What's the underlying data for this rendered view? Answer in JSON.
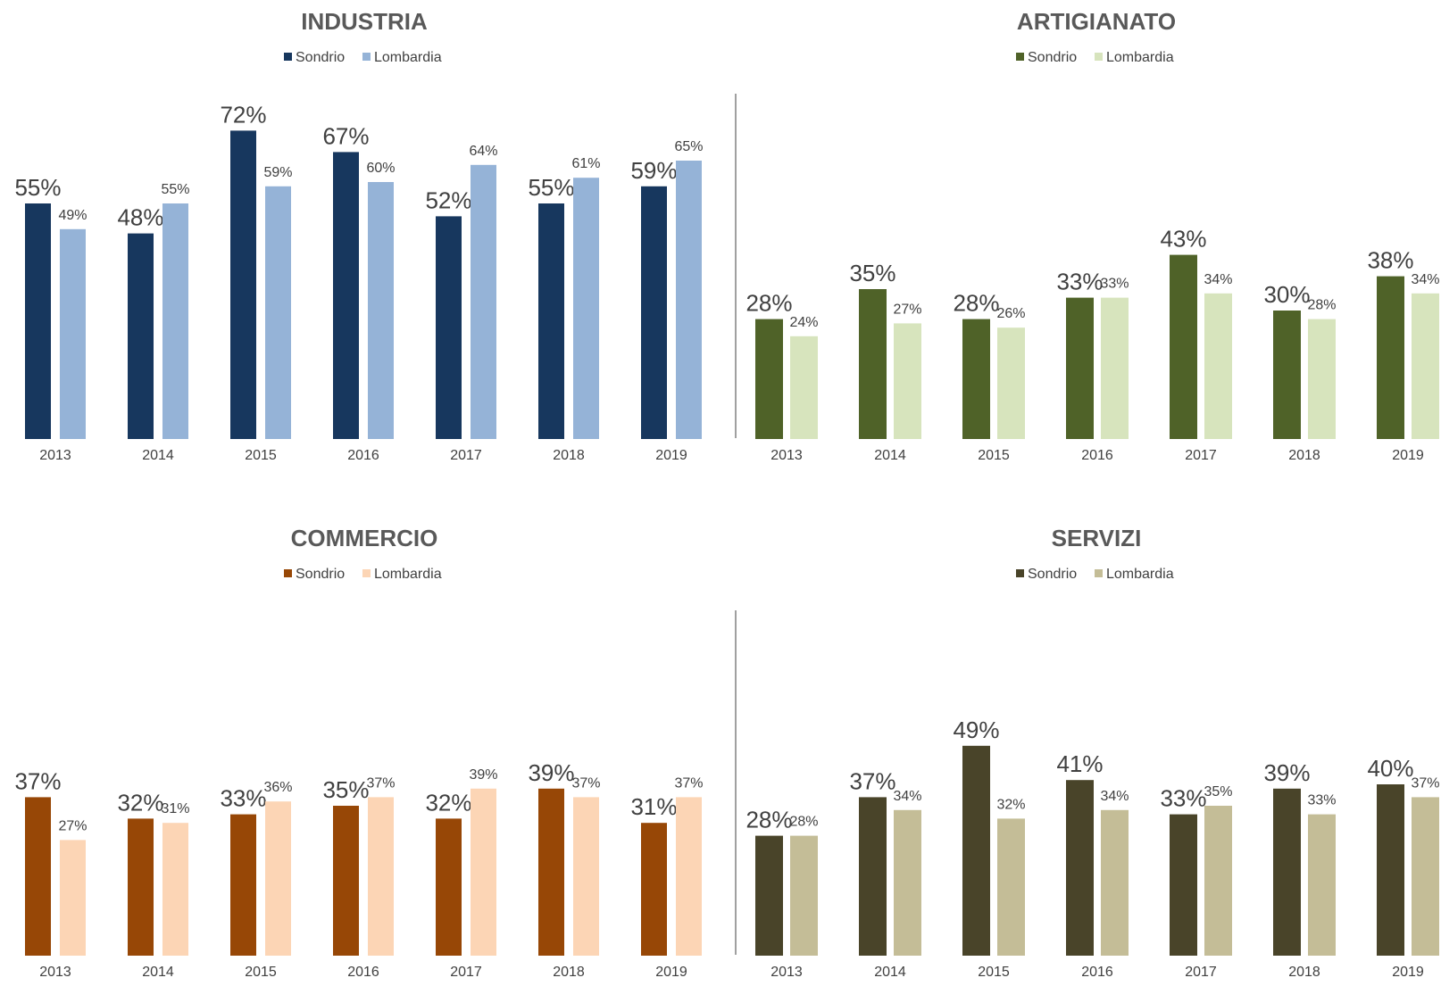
{
  "chart_data": [
    {
      "type": "bar",
      "title": "INDUSTRIA",
      "categories": [
        "2013",
        "2014",
        "2015",
        "2016",
        "2017",
        "2018",
        "2019"
      ],
      "series": [
        {
          "name": "Sondrio",
          "color": "#17375e",
          "values": [
            55,
            48,
            72,
            67,
            52,
            55,
            59
          ],
          "labels": [
            "55%",
            "48%",
            "72%",
            "67%",
            "52%",
            "55%",
            "59%"
          ]
        },
        {
          "name": "Lombardia",
          "color": "#95b3d7",
          "values": [
            49,
            55,
            59,
            60,
            64,
            61,
            65
          ],
          "labels": [
            "49%",
            "55%",
            "59%",
            "60%",
            "64%",
            "61%",
            "65%"
          ]
        }
      ],
      "ylim": [
        0,
        80
      ],
      "grid": false,
      "legend": "top"
    },
    {
      "type": "bar",
      "title": "ARTIGIANATO",
      "categories": [
        "2013",
        "2014",
        "2015",
        "2016",
        "2017",
        "2018",
        "2019"
      ],
      "series": [
        {
          "name": "Sondrio",
          "color": "#4f6228",
          "values": [
            28,
            35,
            28,
            33,
            43,
            30,
            38
          ],
          "labels": [
            "28%",
            "35%",
            "28%",
            "33%",
            "43%",
            "30%",
            "38%"
          ]
        },
        {
          "name": "Lombardia",
          "color": "#d7e4bd",
          "values": [
            24,
            27,
            26,
            33,
            34,
            28,
            34
          ],
          "labels": [
            "24%",
            "27%",
            "26%",
            "33%",
            "34%",
            "28%",
            "34%"
          ]
        }
      ],
      "ylim": [
        0,
        80
      ],
      "grid": false,
      "legend": "top"
    },
    {
      "type": "bar",
      "title": "COMMERCIO",
      "categories": [
        "2013",
        "2014",
        "2015",
        "2016",
        "2017",
        "2018",
        "2019"
      ],
      "series": [
        {
          "name": "Sondrio",
          "color": "#974706",
          "values": [
            37,
            32,
            33,
            35,
            32,
            39,
            31
          ],
          "labels": [
            "37%",
            "32%",
            "33%",
            "35%",
            "32%",
            "39%",
            "31%"
          ]
        },
        {
          "name": "Lombardia",
          "color": "#fcd5b5",
          "values": [
            27,
            31,
            36,
            37,
            39,
            37,
            37
          ],
          "labels": [
            "27%",
            "31%",
            "36%",
            "37%",
            "39%",
            "37%",
            "37%"
          ]
        }
      ],
      "ylim": [
        0,
        80
      ],
      "grid": false,
      "legend": "top"
    },
    {
      "type": "bar",
      "title": "SERVIZI",
      "categories": [
        "2013",
        "2014",
        "2015",
        "2016",
        "2017",
        "2018",
        "2019"
      ],
      "series": [
        {
          "name": "Sondrio",
          "color": "#494429",
          "values": [
            28,
            37,
            49,
            41,
            33,
            39,
            40
          ],
          "labels": [
            "28%",
            "37%",
            "49%",
            "41%",
            "33%",
            "39%",
            "40%"
          ]
        },
        {
          "name": "Lombardia",
          "color": "#c4bd97",
          "values": [
            28,
            34,
            32,
            34,
            35,
            33,
            37
          ],
          "labels": [
            "28%",
            "34%",
            "32%",
            "34%",
            "35%",
            "33%",
            "37%"
          ]
        }
      ],
      "ylim": [
        0,
        80
      ],
      "grid": false,
      "legend": "top"
    }
  ]
}
